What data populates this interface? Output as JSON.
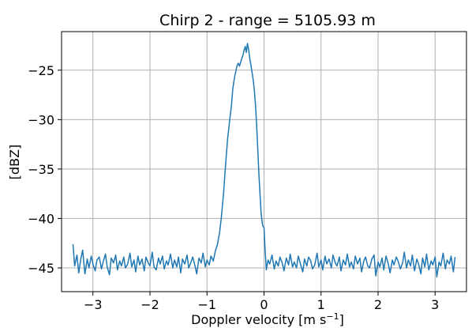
{
  "chart_data": {
    "type": "line",
    "title": "Chirp 2 - range = 5105.93 m",
    "xlabel": "Doppler velocity [m s",
    "xlabel_sup": "−1",
    "xlabel_suffix": "]",
    "ylabel": "[dBZ]",
    "xlim": [
      -3.55,
      3.55
    ],
    "ylim": [
      -47.4,
      -21.1
    ],
    "grid": true,
    "x_ticks": [
      -3,
      -2,
      -1,
      0,
      1,
      2,
      3
    ],
    "x_tick_labels": [
      "−3",
      "−2",
      "−1",
      "0",
      "1",
      "2",
      "3"
    ],
    "y_ticks": [
      -25,
      -30,
      -35,
      -40,
      -45
    ],
    "y_tick_labels": [
      "−25",
      "−30",
      "−35",
      "−40",
      "−45"
    ],
    "series": [
      {
        "color": "#1f77b4",
        "x": [
          -3.35,
          -3.32,
          -3.28,
          -3.25,
          -3.21,
          -3.18,
          -3.14,
          -3.1,
          -3.07,
          -3.03,
          -3.0,
          -2.96,
          -2.93,
          -2.89,
          -2.85,
          -2.82,
          -2.78,
          -2.75,
          -2.71,
          -2.68,
          -2.64,
          -2.6,
          -2.57,
          -2.53,
          -2.5,
          -2.46,
          -2.43,
          -2.39,
          -2.35,
          -2.32,
          -2.28,
          -2.25,
          -2.21,
          -2.18,
          -2.14,
          -2.1,
          -2.07,
          -2.03,
          -2.0,
          -1.96,
          -1.93,
          -1.89,
          -1.85,
          -1.82,
          -1.78,
          -1.75,
          -1.71,
          -1.68,
          -1.64,
          -1.6,
          -1.57,
          -1.53,
          -1.5,
          -1.46,
          -1.43,
          -1.39,
          -1.35,
          -1.32,
          -1.28,
          -1.25,
          -1.21,
          -1.18,
          -1.14,
          -1.1,
          -1.07,
          -1.03,
          -1.0,
          -0.96,
          -0.93,
          -0.89,
          -0.85,
          -0.82,
          -0.78,
          -0.75,
          -0.71,
          -0.68,
          -0.64,
          -0.6,
          -0.57,
          -0.55,
          -0.53,
          -0.51,
          -0.49,
          -0.47,
          -0.45,
          -0.43,
          -0.41,
          -0.39,
          -0.37,
          -0.35,
          -0.33,
          -0.31,
          -0.29,
          -0.27,
          -0.25,
          -0.23,
          -0.21,
          -0.19,
          -0.17,
          -0.15,
          -0.13,
          -0.11,
          -0.09,
          -0.07,
          -0.05,
          -0.03,
          -0.02,
          0.0,
          0.02,
          0.04,
          0.07,
          0.1,
          0.14,
          0.18,
          0.21,
          0.25,
          0.28,
          0.32,
          0.35,
          0.39,
          0.43,
          0.46,
          0.5,
          0.53,
          0.57,
          0.6,
          0.64,
          0.68,
          0.71,
          0.75,
          0.78,
          0.82,
          0.85,
          0.89,
          0.93,
          0.96,
          1.0,
          1.03,
          1.07,
          1.1,
          1.14,
          1.18,
          1.21,
          1.25,
          1.28,
          1.32,
          1.35,
          1.39,
          1.43,
          1.46,
          1.5,
          1.53,
          1.57,
          1.6,
          1.64,
          1.68,
          1.71,
          1.75,
          1.78,
          1.82,
          1.85,
          1.89,
          1.93,
          1.96,
          2.0,
          2.03,
          2.07,
          2.1,
          2.14,
          2.18,
          2.21,
          2.25,
          2.28,
          2.32,
          2.35,
          2.39,
          2.43,
          2.46,
          2.5,
          2.53,
          2.57,
          2.6,
          2.64,
          2.68,
          2.71,
          2.75,
          2.78,
          2.82,
          2.85,
          2.89,
          2.93,
          2.96,
          3.0,
          3.03,
          3.07,
          3.1,
          3.14,
          3.18,
          3.21,
          3.25,
          3.28,
          3.32,
          3.35
        ],
        "y": [
          -42.6,
          -44.8,
          -43.7,
          -45.5,
          -44.0,
          -43.2,
          -45.6,
          -44.1,
          -45.0,
          -43.8,
          -44.6,
          -45.3,
          -44.2,
          -43.9,
          -45.1,
          -44.4,
          -43.6,
          -44.9,
          -45.7,
          -44.0,
          -44.5,
          -43.7,
          -45.2,
          -44.3,
          -44.8,
          -43.9,
          -45.0,
          -44.6,
          -43.5,
          -44.9,
          -44.2,
          -45.4,
          -43.8,
          -44.7,
          -44.1,
          -45.3,
          -43.9,
          -44.5,
          -44.8,
          -43.4,
          -44.9,
          -45.2,
          -44.0,
          -44.6,
          -43.8,
          -45.1,
          -44.3,
          -44.7,
          -43.6,
          -45.0,
          -44.2,
          -44.9,
          -43.9,
          -45.5,
          -44.1,
          -44.6,
          -43.7,
          -45.0,
          -44.4,
          -43.9,
          -44.8,
          -45.6,
          -44.0,
          -44.5,
          -43.5,
          -44.9,
          -44.2,
          -44.7,
          -43.8,
          -44.3,
          -43.2,
          -42.7,
          -41.5,
          -40.0,
          -37.5,
          -35.0,
          -32.0,
          -30.0,
          -28.5,
          -27.0,
          -26.2,
          -25.5,
          -25.0,
          -24.5,
          -24.3,
          -24.6,
          -24.2,
          -23.8,
          -23.5,
          -23.0,
          -22.6,
          -23.2,
          -22.3,
          -22.9,
          -23.8,
          -24.5,
          -25.2,
          -26.0,
          -27.0,
          -28.5,
          -30.5,
          -33.0,
          -35.5,
          -37.5,
          -39.5,
          -40.5,
          -40.8,
          -40.9,
          -43.2,
          -45.2,
          -44.2,
          -44.6,
          -43.7,
          -45.1,
          -44.3,
          -44.8,
          -43.9,
          -44.5,
          -45.3,
          -44.0,
          -44.7,
          -43.6,
          -44.9,
          -44.4,
          -45.0,
          -43.8,
          -44.6,
          -45.4,
          -44.1,
          -44.8,
          -43.9,
          -44.3,
          -45.1,
          -44.7,
          -43.5,
          -44.9,
          -44.2,
          -45.2,
          -43.8,
          -44.6,
          -44.1,
          -45.0,
          -43.7,
          -44.5,
          -44.8,
          -43.9,
          -45.3,
          -44.2,
          -44.7,
          -43.6,
          -44.9,
          -44.4,
          -45.1,
          -43.8,
          -44.6,
          -44.0,
          -45.4,
          -44.3,
          -43.9,
          -44.8,
          -45.0,
          -44.1,
          -43.7,
          -45.8,
          -44.4,
          -44.9,
          -44.0,
          -45.2,
          -43.8,
          -44.6,
          -45.5,
          -44.2,
          -44.7,
          -43.9,
          -44.3,
          -45.1,
          -44.5,
          -43.4,
          -45.0,
          -44.2,
          -44.8,
          -43.7,
          -45.3,
          -44.1,
          -44.6,
          -45.6,
          -44.0,
          -44.9,
          -43.6,
          -45.2,
          -44.3,
          -44.7,
          -43.9,
          -45.9,
          -44.4,
          -44.8,
          -43.5,
          -45.1,
          -44.2,
          -44.6,
          -43.8,
          -45.4,
          -43.9
        ]
      }
    ]
  }
}
